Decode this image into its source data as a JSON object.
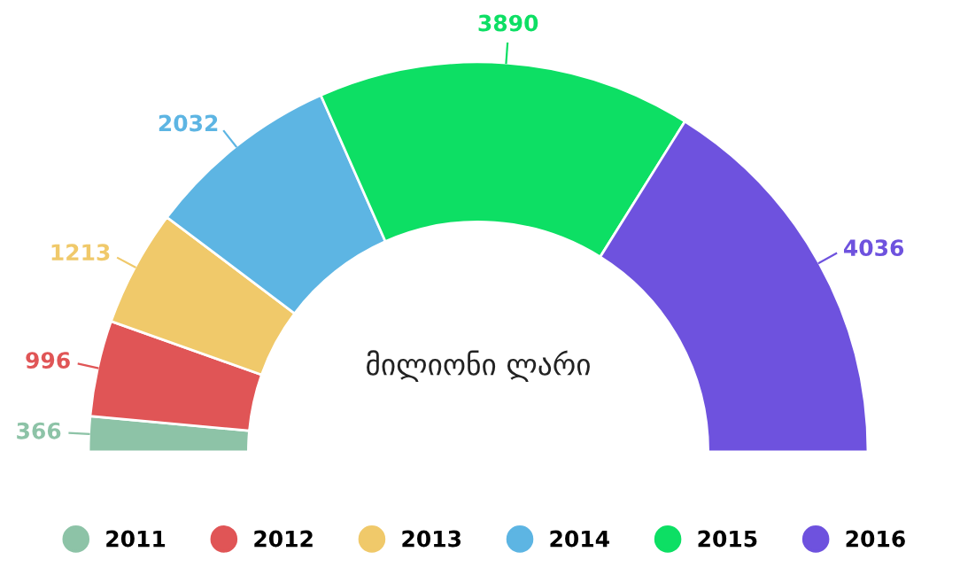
{
  "chart_data": {
    "type": "donut",
    "annotations": [
      "მილიონი ლარი"
    ],
    "categories": [
      "2011",
      "2012",
      "2013",
      "2014",
      "2015",
      "2016"
    ],
    "values": [
      366,
      996,
      1213,
      2032,
      3890,
      4036
    ],
    "colors": [
      "#8dc3a7",
      "#e05556",
      "#f0c96a",
      "#5db5e3",
      "#0ddf64",
      "#6e52de"
    ],
    "data_labels": true,
    "legend": "bottom"
  }
}
